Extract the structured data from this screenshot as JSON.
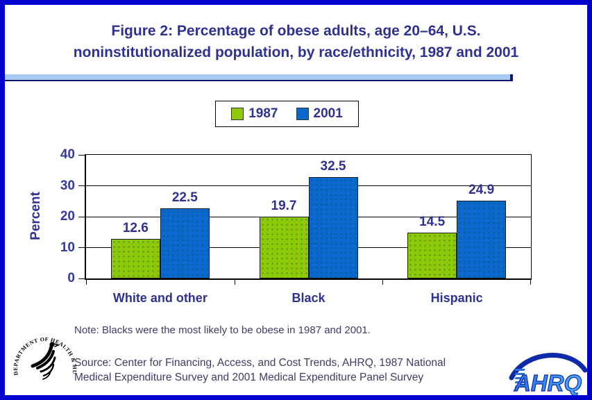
{
  "title": {
    "line1": "Figure 2: Percentage of obese adults, age 20–64, U.S.",
    "line2": "noninstitutionalized population, by race/ethnicity, 1987 and 2001"
  },
  "chart_data": {
    "type": "bar",
    "categories": [
      "White and other",
      "Black",
      "Hispanic"
    ],
    "series": [
      {
        "name": "1987",
        "color": "#8dc809",
        "values": [
          12.6,
          19.7,
          14.5
        ]
      },
      {
        "name": "2001",
        "color": "#0d68ce",
        "values": [
          22.5,
          32.5,
          24.9
        ]
      }
    ],
    "ylabel": "Percent",
    "yticks": [
      0,
      10,
      20,
      30,
      40
    ],
    "ylim": [
      0,
      40
    ],
    "grid": true,
    "legend_position": "top-center",
    "value_labels": true
  },
  "footer": {
    "note": "Note: Blacks were the most likely to be obese in 1987 and 2001.",
    "source_line1": "Source: Center for Financing, Access, and Cost Trends, AHRQ, 1987 National",
    "source_line2": "Medical Expenditure Survey and 2001 Medical Expenditure Panel Survey"
  },
  "logos": {
    "hhs_seal_text": "DEPARTMENT OF HEALTH & HUMAN SERVICES·USA",
    "ahrq_text": "AHRQ"
  },
  "colors": {
    "page_border": "#0101ce",
    "navy_text": "#2e3192",
    "title_rule": "#a9cbf5",
    "series_1987": "#8dc809",
    "series_2001": "#0d68ce",
    "footer_text": "#3d3d66"
  }
}
